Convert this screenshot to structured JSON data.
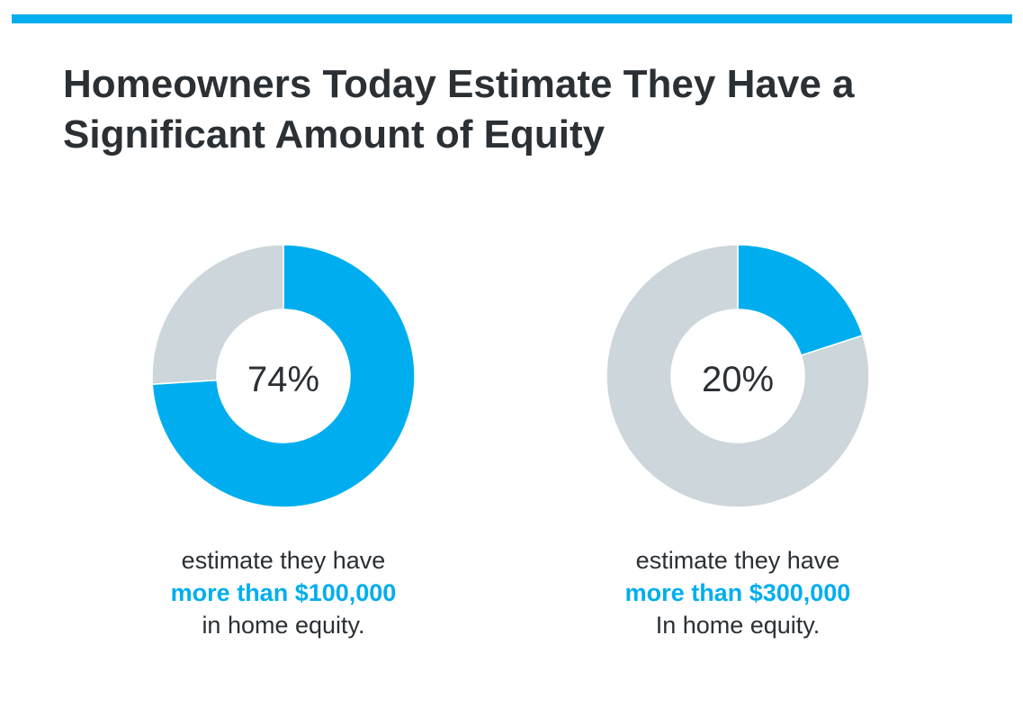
{
  "title": "Homeowners Today Estimate They Have a Significant Amount of Equity",
  "colors": {
    "accent": "#00aeef",
    "remainder": "#cdd6da",
    "text": "#2b3035"
  },
  "chart_data": [
    {
      "type": "pie",
      "variant": "donut",
      "center_label": "74%",
      "slices": [
        {
          "label": "more than $100,000",
          "value": 74,
          "color": "#00aeef"
        },
        {
          "label": "",
          "value": 26,
          "color": "#cdd6da"
        }
      ],
      "caption": {
        "line1": "estimate they have",
        "highlight": "more than $100,000",
        "line3": "in home equity."
      }
    },
    {
      "type": "pie",
      "variant": "donut",
      "center_label": "20%",
      "slices": [
        {
          "label": "more than $300,000",
          "value": 20,
          "color": "#00aeef"
        },
        {
          "label": "",
          "value": 80,
          "color": "#cdd6da"
        }
      ],
      "caption": {
        "line1": "estimate they have",
        "highlight": "more than $300,000",
        "line3": "In home equity."
      }
    }
  ]
}
